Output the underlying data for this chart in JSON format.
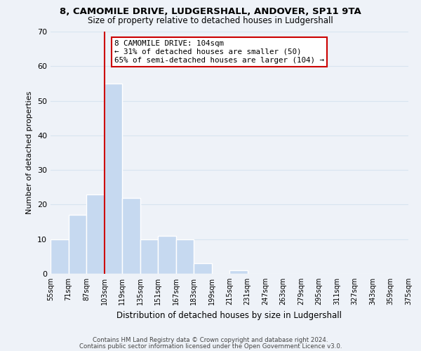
{
  "title": "8, CAMOMILE DRIVE, LUDGERSHALL, ANDOVER, SP11 9TA",
  "subtitle": "Size of property relative to detached houses in Ludgershall",
  "xlabel": "Distribution of detached houses by size in Ludgershall",
  "ylabel": "Number of detached properties",
  "bin_edges": [
    55,
    71,
    87,
    103,
    119,
    135,
    151,
    167,
    183,
    199,
    215,
    231,
    247,
    263,
    279,
    295,
    311,
    327,
    343,
    359,
    375
  ],
  "bar_heights": [
    10,
    17,
    23,
    55,
    22,
    10,
    11,
    10,
    3,
    0,
    1,
    0,
    0,
    0,
    0,
    0,
    0,
    0,
    0,
    0
  ],
  "bar_color": "#c6d9f0",
  "bar_edge_color": "#ffffff",
  "grid_color": "#d8e4f0",
  "vline_x": 103,
  "vline_color": "#cc0000",
  "annotation_title": "8 CAMOMILE DRIVE: 104sqm",
  "annotation_line1": "← 31% of detached houses are smaller (50)",
  "annotation_line2": "65% of semi-detached houses are larger (104) →",
  "annotation_box_color": "#ffffff",
  "annotation_box_edge": "#cc0000",
  "ylim": [
    0,
    70
  ],
  "yticks": [
    0,
    10,
    20,
    30,
    40,
    50,
    60,
    70
  ],
  "tick_labels": [
    "55sqm",
    "71sqm",
    "87sqm",
    "103sqm",
    "119sqm",
    "135sqm",
    "151sqm",
    "167sqm",
    "183sqm",
    "199sqm",
    "215sqm",
    "231sqm",
    "247sqm",
    "263sqm",
    "279sqm",
    "295sqm",
    "311sqm",
    "327sqm",
    "343sqm",
    "359sqm",
    "375sqm"
  ],
  "footnote1": "Contains HM Land Registry data © Crown copyright and database right 2024.",
  "footnote2": "Contains public sector information licensed under the Open Government Licence v3.0.",
  "bg_color": "#eef2f8"
}
